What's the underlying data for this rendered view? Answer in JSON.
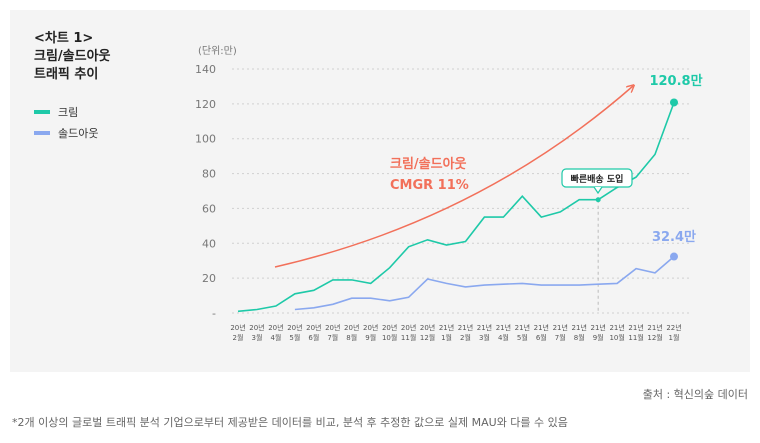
{
  "header": {
    "title_line1": "<차트 1>",
    "title_line2": "크림/솔드아웃",
    "title_line3": "트래픽 추이"
  },
  "legend": [
    {
      "label": "크림",
      "color": "#1ec9a8"
    },
    {
      "label": "솔드아웃",
      "color": "#8aa8ef"
    }
  ],
  "unit_label": "(단위:만)",
  "annotations": {
    "cmgr_line1": "크림/솔드아웃",
    "cmgr_line2": "CMGR 11%",
    "callout": "빠른배송 도입",
    "kream_end": "120.8만",
    "soldout_end": "32.4만"
  },
  "footer": {
    "source": "출처 : 혁신의숲 데이터",
    "note": "*2개 이상의 글로벌 트래픽 분석 기업으로부터 제공받은 데이터를 비교, 분석 후 추정한 값으로 실제 MAU와 다를 수 있음"
  },
  "chart_data": {
    "type": "line",
    "x": [
      [
        "20년",
        "2월"
      ],
      [
        "20년",
        "3월"
      ],
      [
        "20년",
        "4월"
      ],
      [
        "20년",
        "5월"
      ],
      [
        "20년",
        "6월"
      ],
      [
        "20년",
        "7월"
      ],
      [
        "20년",
        "8월"
      ],
      [
        "20년",
        "9월"
      ],
      [
        "20년",
        "10월"
      ],
      [
        "20년",
        "11월"
      ],
      [
        "20년",
        "12월"
      ],
      [
        "21년",
        "1월"
      ],
      [
        "21년",
        "2월"
      ],
      [
        "21년",
        "3월"
      ],
      [
        "21년",
        "4월"
      ],
      [
        "21년",
        "5월"
      ],
      [
        "21년",
        "6월"
      ],
      [
        "21년",
        "7월"
      ],
      [
        "21년",
        "8월"
      ],
      [
        "21년",
        "9월"
      ],
      [
        "21년",
        "10월"
      ],
      [
        "21년",
        "11월"
      ],
      [
        "21년",
        "12월"
      ],
      [
        "22년",
        "1월"
      ]
    ],
    "y_ticks": [
      "140",
      "120",
      "100",
      "80",
      "60",
      "40",
      "20",
      "-"
    ],
    "ylim": [
      0,
      140
    ],
    "series": [
      {
        "name": "크림",
        "color": "#1ec9a8",
        "values": [
          1,
          2,
          4,
          11,
          13,
          19,
          19,
          17,
          26,
          38,
          42,
          39,
          41,
          55,
          55,
          67,
          55,
          58,
          65,
          65,
          72,
          78,
          91,
          120.8
        ]
      },
      {
        "name": "솔드아웃",
        "color": "#8aa8ef",
        "values": [
          null,
          null,
          null,
          2,
          3,
          5,
          8.5,
          8.5,
          7,
          9,
          19.5,
          17,
          15,
          16,
          16.5,
          17,
          16,
          16,
          16,
          16.5,
          17,
          25.5,
          23,
          32.4
        ]
      }
    ],
    "trend_color": "#f2705a",
    "callout_index": 19
  }
}
